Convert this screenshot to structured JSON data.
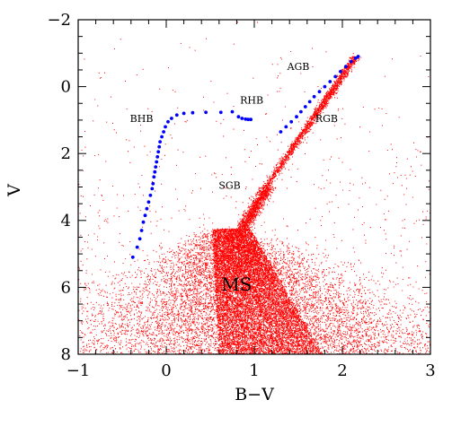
{
  "chart_data": {
    "type": "scatter",
    "title": "",
    "xlabel": "B−V",
    "ylabel": "V",
    "xlim": [
      -1,
      3
    ],
    "ylim": [
      8,
      -2
    ],
    "y_inverted": true,
    "x_ticks": [
      -1,
      0,
      1,
      2,
      3
    ],
    "x_tick_labels": [
      "−1",
      "0",
      "1",
      "2",
      "3"
    ],
    "y_ticks": [
      -2,
      0,
      2,
      4,
      6,
      8
    ],
    "y_tick_labels": [
      "−2",
      "0",
      "2",
      "4",
      "6",
      "8"
    ],
    "grid": false,
    "legend": "none",
    "annotations": [
      {
        "text": "AGB",
        "x": 1.5,
        "y": -0.5,
        "size": "small"
      },
      {
        "text": "RHB",
        "x": 0.97,
        "y": 0.5,
        "size": "small"
      },
      {
        "text": "BHB",
        "x": -0.28,
        "y": 1.05,
        "size": "small"
      },
      {
        "text": "RGB",
        "x": 1.82,
        "y": 1.05,
        "size": "small"
      },
      {
        "text": "SGB",
        "x": 0.72,
        "y": 3.05,
        "size": "small"
      },
      {
        "text": "MS",
        "x": 0.8,
        "y": 6.1,
        "size": "big"
      }
    ],
    "series": [
      {
        "color": "#ff0000",
        "marker": "dot",
        "description_points": {
          "main_sequence_turnoff": [
            [
              0.55,
              4.3
            ],
            [
              0.7,
              4.2
            ],
            [
              0.85,
              4.35
            ]
          ],
          "main_sequence_ridge": [
            [
              0.6,
              5.0
            ],
            [
              0.75,
              6.0
            ],
            [
              0.9,
              7.0
            ],
            [
              1.05,
              8.0
            ]
          ],
          "subgiant_branch": [
            [
              0.85,
              4.2
            ],
            [
              1.0,
              3.6
            ],
            [
              1.1,
              3.1
            ]
          ],
          "red_giant_branch": [
            [
              1.1,
              3.0
            ],
            [
              1.25,
              2.3
            ],
            [
              1.4,
              1.5
            ],
            [
              1.6,
              0.8
            ],
            [
              1.8,
              0.0
            ],
            [
              2.0,
              -0.5
            ],
            [
              2.15,
              -1.0
            ]
          ]
        }
      },
      {
        "color": "#0000ff",
        "marker": "dot",
        "points": [
          [
            -0.38,
            5.1
          ],
          [
            -0.33,
            4.8
          ],
          [
            -0.3,
            4.55
          ],
          [
            -0.28,
            4.3
          ],
          [
            -0.26,
            4.05
          ],
          [
            -0.24,
            3.85
          ],
          [
            -0.22,
            3.65
          ],
          [
            -0.2,
            3.45
          ],
          [
            -0.18,
            3.25
          ],
          [
            -0.16,
            3.05
          ],
          [
            -0.15,
            2.9
          ],
          [
            -0.14,
            2.7
          ],
          [
            -0.13,
            2.55
          ],
          [
            -0.12,
            2.4
          ],
          [
            -0.11,
            2.25
          ],
          [
            -0.1,
            2.1
          ],
          [
            -0.09,
            1.95
          ],
          [
            -0.08,
            1.8
          ],
          [
            -0.07,
            1.65
          ],
          [
            -0.05,
            1.5
          ],
          [
            -0.03,
            1.35
          ],
          [
            -0.01,
            1.2
          ],
          [
            0.02,
            1.05
          ],
          [
            0.06,
            0.95
          ],
          [
            0.12,
            0.85
          ],
          [
            0.2,
            0.8
          ],
          [
            0.3,
            0.78
          ],
          [
            0.45,
            0.77
          ],
          [
            0.62,
            0.77
          ],
          [
            0.75,
            0.75
          ],
          [
            0.82,
            0.9
          ],
          [
            0.86,
            0.95
          ],
          [
            0.9,
            0.97
          ],
          [
            0.93,
            0.98
          ],
          [
            0.96,
            0.98
          ],
          [
            1.3,
            1.35
          ],
          [
            1.36,
            1.2
          ],
          [
            1.42,
            1.05
          ],
          [
            1.48,
            0.9
          ],
          [
            1.53,
            0.75
          ],
          [
            1.58,
            0.6
          ],
          [
            1.63,
            0.45
          ],
          [
            1.68,
            0.3
          ],
          [
            1.74,
            0.15
          ],
          [
            1.8,
            0.0
          ],
          [
            1.86,
            -0.15
          ],
          [
            1.92,
            -0.3
          ],
          [
            1.98,
            -0.45
          ],
          [
            2.04,
            -0.6
          ],
          [
            2.1,
            -0.75
          ],
          [
            2.15,
            -0.85
          ],
          [
            2.18,
            -0.9
          ]
        ]
      }
    ]
  }
}
